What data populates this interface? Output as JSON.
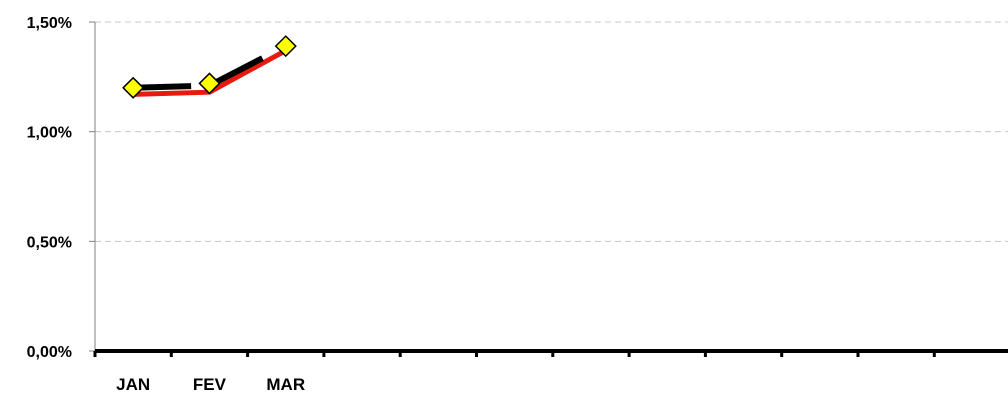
{
  "chart_data": {
    "type": "line",
    "title": "",
    "xlabel": "",
    "ylabel": "",
    "categories": [
      "JAN",
      "FEV",
      "MAR"
    ],
    "slot_count": 12,
    "ylim": [
      0,
      0.015
    ],
    "y_ticks": [
      {
        "value": 0.0,
        "label": "0,00%"
      },
      {
        "value": 0.005,
        "label": "0,50%"
      },
      {
        "value": 0.01,
        "label": "1,00%"
      },
      {
        "value": 0.015,
        "label": "1,50%"
      }
    ],
    "grid": true,
    "legend": "none",
    "series": [
      {
        "color": "#e8190f",
        "marker": "none",
        "values": [
          0.0117,
          0.0118,
          0.0137
        ]
      },
      {
        "color": "#000000",
        "marker": "none",
        "style": "dashed",
        "values": [
          0.012,
          0.0121,
          0.0139
        ]
      },
      {
        "color": "#000000",
        "marker": "diamond",
        "marker_color": "#ffff00",
        "values": [
          0.012,
          0.0122,
          0.0139
        ]
      }
    ]
  }
}
